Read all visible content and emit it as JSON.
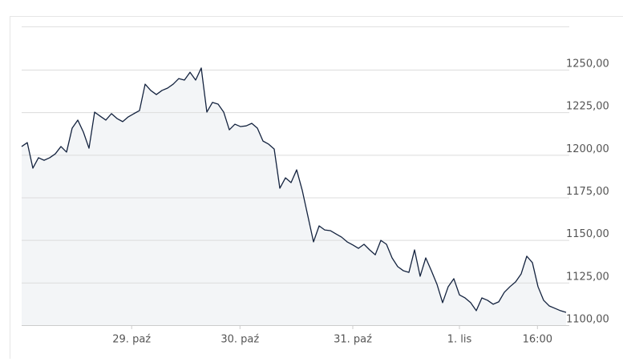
{
  "chart_data": {
    "type": "line",
    "color": "#14233f",
    "area_color": "#f3f5f7",
    "grid": true,
    "xlim": [
      0,
      97
    ],
    "xticks": [
      {
        "value": 19.6,
        "label": "29. paź"
      },
      {
        "value": 38.9,
        "label": "30. paź"
      },
      {
        "value": 59,
        "label": "31. paź"
      },
      {
        "value": 78,
        "label": "1. lis"
      },
      {
        "value": 91.9,
        "label": "16:00"
      }
    ],
    "ylim": [
      1100,
      1275.4
    ],
    "yticks": [
      {
        "value": 1100,
        "label": "1100,00"
      },
      {
        "value": 1125,
        "label": "1125,00"
      },
      {
        "value": 1150,
        "label": "1150,00"
      },
      {
        "value": 1175,
        "label": "1175,00"
      },
      {
        "value": 1200,
        "label": "1200,00"
      },
      {
        "value": 1225,
        "label": "1225,00"
      },
      {
        "value": 1250,
        "label": "1250,00"
      }
    ],
    "values": [
      1204.9,
      1207.2,
      1192.2,
      1198.3,
      1196.8,
      1198.3,
      1200.6,
      1204.9,
      1201.6,
      1215.7,
      1220.4,
      1213.4,
      1203.9,
      1225.1,
      1222.7,
      1220.4,
      1224.2,
      1221.3,
      1219.5,
      1222.3,
      1224.2,
      1226,
      1241.5,
      1237.8,
      1235.4,
      1237.8,
      1239.2,
      1241.5,
      1244.8,
      1243.9,
      1248.5,
      1243.9,
      1251,
      1225.1,
      1230.8,
      1229.8,
      1225.1,
      1214.7,
      1218,
      1216.6,
      1217,
      1218.5,
      1215.7,
      1208.1,
      1206.3,
      1203.4,
      1180.4,
      1186.5,
      1183.7,
      1191.2,
      1179.1,
      1164,
      1148.9,
      1158.3,
      1155.9,
      1155.5,
      1153.6,
      1151.7,
      1148.9,
      1147.1,
      1145.1,
      1147.5,
      1144.2,
      1141.3,
      1149.8,
      1147.5,
      1139.5,
      1134.4,
      1132,
      1131,
      1144.2,
      1128.7,
      1139.5,
      1132,
      1124,
      1113.2,
      1122.6,
      1127.3,
      1117.8,
      1116,
      1113.2,
      1108.5,
      1116,
      1114.6,
      1112.3,
      1113.7,
      1119.3,
      1122.6,
      1125.4,
      1130.1,
      1140.5,
      1136.7,
      1122.6,
      1114.6,
      1111.3,
      1109.9,
      1108.5,
      1107.5
    ]
  }
}
